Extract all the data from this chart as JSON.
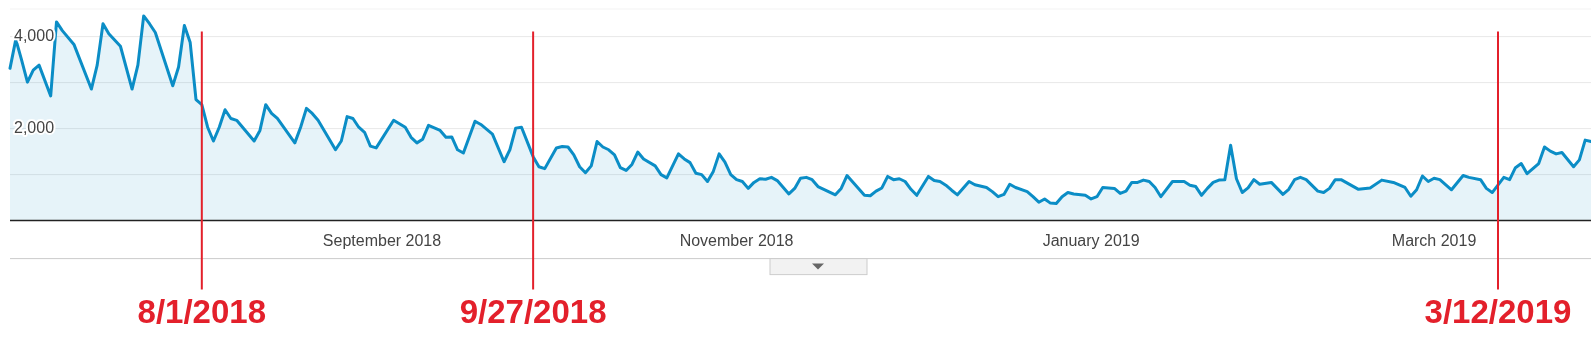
{
  "chart_data": {
    "type": "area",
    "color": "#0b8dc6",
    "x": [
      "2018-06-29",
      "2018-06-30",
      "2018-07-01",
      "2018-07-02",
      "2018-07-03",
      "2018-07-04",
      "2018-07-06",
      "2018-07-07",
      "2018-07-08",
      "2018-07-10",
      "2018-07-13",
      "2018-07-14",
      "2018-07-15",
      "2018-07-16",
      "2018-07-18",
      "2018-07-20",
      "2018-07-21",
      "2018-07-22",
      "2018-07-23",
      "2018-07-24",
      "2018-07-27",
      "2018-07-28",
      "2018-07-29",
      "2018-07-30",
      "2018-07-31",
      "2018-08-01",
      "2018-08-02",
      "2018-08-03",
      "2018-08-04",
      "2018-08-05",
      "2018-08-06",
      "2018-08-07",
      "2018-08-10",
      "2018-08-11",
      "2018-08-12",
      "2018-08-13",
      "2018-08-14",
      "2018-08-17",
      "2018-08-18",
      "2018-08-19",
      "2018-08-20",
      "2018-08-21",
      "2018-08-24",
      "2018-08-25",
      "2018-08-26",
      "2018-08-27",
      "2018-08-28",
      "2018-08-29",
      "2018-08-30",
      "2018-08-31",
      "2018-09-03",
      "2018-09-05",
      "2018-09-06",
      "2018-09-07",
      "2018-09-08",
      "2018-09-09",
      "2018-09-11",
      "2018-09-12",
      "2018-09-13",
      "2018-09-14",
      "2018-09-15",
      "2018-09-17",
      "2018-09-18",
      "2018-09-20",
      "2018-09-22",
      "2018-09-23",
      "2018-09-24",
      "2018-09-25",
      "2018-09-27",
      "2018-09-28",
      "2018-09-29",
      "2018-10-01",
      "2018-10-02",
      "2018-10-03",
      "2018-10-04",
      "2018-10-05",
      "2018-10-06",
      "2018-10-07",
      "2018-10-08",
      "2018-10-09",
      "2018-10-10",
      "2018-10-11",
      "2018-10-12",
      "2018-10-13",
      "2018-10-14",
      "2018-10-15",
      "2018-10-16",
      "2018-10-18",
      "2018-10-19",
      "2018-10-20",
      "2018-10-22",
      "2018-10-23",
      "2018-10-24",
      "2018-10-25",
      "2018-10-26",
      "2018-10-27",
      "2018-10-28",
      "2018-10-29",
      "2018-10-30",
      "2018-10-31",
      "2018-11-01",
      "2018-11-02",
      "2018-11-03",
      "2018-11-04",
      "2018-11-05",
      "2018-11-06",
      "2018-11-07",
      "2018-11-08",
      "2018-11-10",
      "2018-11-11",
      "2018-11-12",
      "2018-11-13",
      "2018-11-14",
      "2018-11-15",
      "2018-11-18",
      "2018-11-19",
      "2018-11-20",
      "2018-11-23",
      "2018-11-24",
      "2018-11-25",
      "2018-11-26",
      "2018-11-27",
      "2018-11-28",
      "2018-11-29",
      "2018-11-30",
      "2018-12-01",
      "2018-12-02",
      "2018-12-04",
      "2018-12-05",
      "2018-12-06",
      "2018-12-07",
      "2018-12-08",
      "2018-12-09",
      "2018-12-11",
      "2018-12-12",
      "2018-12-14",
      "2018-12-15",
      "2018-12-16",
      "2018-12-17",
      "2018-12-18",
      "2018-12-19",
      "2018-12-21",
      "2018-12-22",
      "2018-12-23",
      "2018-12-24",
      "2018-12-25",
      "2018-12-26",
      "2018-12-27",
      "2018-12-28",
      "2018-12-29",
      "2018-12-31",
      "2019-01-01",
      "2019-01-02",
      "2019-01-03",
      "2019-01-05",
      "2019-01-06",
      "2019-01-07",
      "2019-01-08",
      "2019-01-09",
      "2019-01-10",
      "2019-01-11",
      "2019-01-12",
      "2019-01-13",
      "2019-01-15",
      "2019-01-17",
      "2019-01-18",
      "2019-01-19",
      "2019-01-20",
      "2019-01-21",
      "2019-01-22",
      "2019-01-23",
      "2019-01-24",
      "2019-01-25",
      "2019-01-26",
      "2019-01-27",
      "2019-01-28",
      "2019-01-29",
      "2019-01-30",
      "2019-02-01",
      "2019-02-03",
      "2019-02-04",
      "2019-02-05",
      "2019-02-06",
      "2019-02-07",
      "2019-02-09",
      "2019-02-10",
      "2019-02-11",
      "2019-02-12",
      "2019-02-13",
      "2019-02-16",
      "2019-02-18",
      "2019-02-20",
      "2019-02-22",
      "2019-02-24",
      "2019-02-25",
      "2019-02-26",
      "2019-02-27",
      "2019-02-28",
      "2019-03-01",
      "2019-03-02",
      "2019-03-04",
      "2019-03-06",
      "2019-03-07",
      "2019-03-09",
      "2019-03-10",
      "2019-03-11",
      "2019-03-13",
      "2019-03-14",
      "2019-03-15",
      "2019-03-16",
      "2019-03-17",
      "2019-03-18",
      "2019-03-19",
      "2019-03-20",
      "2019-03-21",
      "2019-03-22",
      "2019-03-23",
      "2019-03-25",
      "2019-03-26",
      "2019-03-27",
      "2019-03-28"
    ],
    "values": [
      3310,
      3940,
      3490,
      3010,
      3270,
      3380,
      2710,
      4320,
      4130,
      3830,
      2860,
      3380,
      4280,
      4060,
      3790,
      2860,
      3380,
      4450,
      4280,
      4090,
      2930,
      3340,
      4240,
      3870,
      2630,
      2520,
      2030,
      1730,
      2030,
      2410,
      2220,
      2180,
      1730,
      1960,
      2520,
      2330,
      2220,
      1690,
      2030,
      2440,
      2330,
      2180,
      1540,
      1730,
      2260,
      2220,
      2030,
      1920,
      1620,
      1580,
      2180,
      2030,
      1810,
      1690,
      1770,
      2070,
      1960,
      1810,
      1820,
      1540,
      1470,
      2160,
      2090,
      1880,
      1280,
      1540,
      2010,
      2030,
      1390,
      1170,
      1130,
      1580,
      1610,
      1600,
      1430,
      1170,
      1040,
      1190,
      1720,
      1600,
      1540,
      1430,
      1150,
      1090,
      1220,
      1490,
      1340,
      1190,
      1000,
      930,
      1450,
      1340,
      1260,
      1030,
      1000,
      850,
      1070,
      1450,
      1270,
      1000,
      890,
      850,
      700,
      830,
      910,
      900,
      940,
      870,
      580,
      700,
      920,
      940,
      890,
      740,
      560,
      700,
      980,
      550,
      540,
      640,
      710,
      960,
      890,
      910,
      850,
      680,
      550,
      960,
      870,
      850,
      770,
      660,
      560,
      850,
      780,
      720,
      630,
      520,
      570,
      790,
      720,
      630,
      520,
      400,
      470,
      380,
      370,
      520,
      610,
      580,
      550,
      470,
      520,
      720,
      700,
      590,
      640,
      830,
      830,
      880,
      850,
      720,
      520,
      850,
      850,
      770,
      740,
      550,
      700,
      830,
      880,
      890,
      1640,
      910,
      610,
      710,
      890,
      790,
      830,
      570,
      680,
      890,
      940,
      890,
      640,
      610,
      700,
      890,
      890,
      680,
      710,
      880,
      830,
      720,
      530,
      670,
      970,
      850,
      920,
      890,
      670,
      980,
      940,
      890,
      700,
      610,
      940,
      890,
      1150,
      1240,
      1020,
      1130,
      1240,
      1600,
      1510,
      1450,
      1480,
      1170,
      1320,
      1750,
      1720
    ],
    "xlim": [
      "2018-06-29",
      "2019-03-28"
    ],
    "xticks": [
      {
        "value": "2018-09-01",
        "label": "September 2018"
      },
      {
        "value": "2018-11-01",
        "label": "November 2018"
      },
      {
        "value": "2019-01-01",
        "label": "January 2019"
      },
      {
        "value": "2019-03-01",
        "label": "March 2019"
      }
    ],
    "ylim": [
      0,
      4600
    ],
    "yticks": [
      {
        "value": 1000,
        "label": null
      },
      {
        "value": 2000,
        "label": "2,000"
      },
      {
        "value": 3000,
        "label": null
      },
      {
        "value": 4000,
        "label": "4,000"
      }
    ],
    "grid": "y",
    "ref_lines": [
      {
        "axis": "x",
        "value": "2018-08-01",
        "label": "8/1/2018",
        "color": "#e3202b"
      },
      {
        "axis": "x",
        "value": "2018-09-27",
        "label": "9/27/2018",
        "color": "#e3202b"
      },
      {
        "axis": "x",
        "value": "2019-03-12",
        "label": "3/12/2019",
        "color": "#e3202b"
      }
    ]
  }
}
